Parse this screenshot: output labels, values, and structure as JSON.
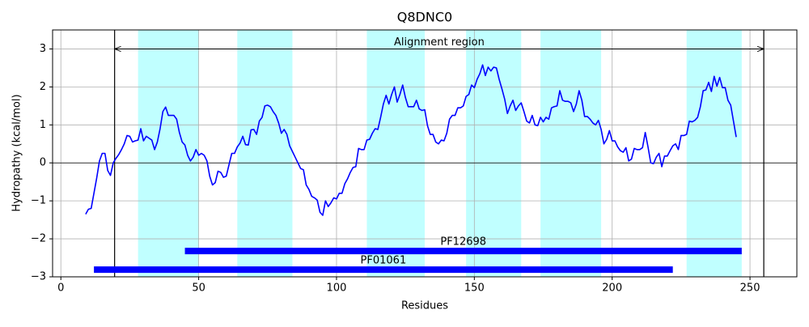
{
  "chart_data": {
    "type": "line",
    "title": "Q8DNC0",
    "x_label": "Residues",
    "y_label": "Hydropathy (kcal/mol)",
    "xlim": [
      -3,
      267
    ],
    "ylim": [
      -3,
      3.5
    ],
    "xticks": [
      0,
      50,
      100,
      150,
      200,
      250
    ],
    "yticks": [
      {
        "value": -3,
        "label": "−3"
      },
      {
        "value": -2,
        "label": "−2"
      },
      {
        "value": -1,
        "label": "−1"
      },
      0,
      1,
      2,
      3
    ],
    "grid": true,
    "hline": 0,
    "color": "#0000ff",
    "regions": [
      {
        "start": 28,
        "end": 50
      },
      {
        "start": 64,
        "end": 84
      },
      {
        "start": 111,
        "end": 132
      },
      {
        "start": 147,
        "end": 167
      },
      {
        "start": 174,
        "end": 196
      },
      {
        "start": 227,
        "end": 247
      }
    ],
    "region_color": "#c0ffff",
    "vlines": [
      19.5,
      255
    ],
    "annotation": {
      "text": "Alignment region",
      "start": 19.5,
      "end": 255,
      "y": 3
    },
    "domains": [
      {
        "name": "PF12698",
        "start": 45,
        "end": 247,
        "y": -2.32
      },
      {
        "name": "PF01061",
        "start": 12,
        "end": 222,
        "y": -2.81
      }
    ],
    "x": [
      9,
      10,
      11,
      12,
      13,
      14,
      15,
      16,
      17,
      18,
      19,
      20,
      21,
      22,
      23,
      24,
      25,
      26,
      27,
      28,
      29,
      30,
      31,
      32,
      33,
      34,
      35,
      36,
      37,
      38,
      39,
      40,
      41,
      42,
      43,
      44,
      45,
      46,
      47,
      48,
      49,
      50,
      51,
      52,
      53,
      54,
      55,
      56,
      57,
      58,
      59,
      60,
      61,
      62,
      63,
      64,
      65,
      66,
      67,
      68,
      69,
      70,
      71,
      72,
      73,
      74,
      75,
      76,
      77,
      78,
      79,
      80,
      81,
      82,
      83,
      84,
      85,
      86,
      87,
      88,
      89,
      90,
      91,
      92,
      93,
      94,
      95,
      96,
      97,
      98,
      99,
      100,
      101,
      102,
      103,
      104,
      105,
      106,
      107,
      108,
      109,
      110,
      111,
      112,
      113,
      114,
      115,
      116,
      117,
      118,
      119,
      120,
      121,
      122,
      123,
      124,
      125,
      126,
      127,
      128,
      129,
      130,
      131,
      132,
      133,
      134,
      135,
      136,
      137,
      138,
      139,
      140,
      141,
      142,
      143,
      144,
      145,
      146,
      147,
      148,
      149,
      150,
      151,
      152,
      153,
      154,
      155,
      156,
      157,
      158,
      159,
      160,
      161,
      162,
      163,
      164,
      165,
      166,
      167,
      168,
      169,
      170,
      171,
      172,
      173,
      174,
      175,
      176,
      177,
      178,
      179,
      180,
      181,
      182,
      183,
      184,
      185,
      186,
      187,
      188,
      189,
      190,
      191,
      192,
      193,
      194,
      195,
      196,
      197,
      198,
      199,
      200,
      201,
      202,
      203,
      204,
      205,
      206,
      207,
      208,
      209,
      210,
      211,
      212,
      213,
      214,
      215,
      216,
      217,
      218,
      219,
      220,
      221,
      222,
      223,
      224,
      225,
      226,
      227,
      228,
      229,
      230,
      231,
      232,
      233,
      234,
      235,
      236,
      237,
      238,
      239,
      240,
      241,
      242,
      243,
      244,
      245
    ],
    "values": [
      -1.35,
      -1.22,
      -1.2,
      -0.8,
      -0.4,
      0.05,
      0.25,
      0.25,
      -0.2,
      -0.33,
      0.0,
      0.12,
      0.22,
      0.35,
      0.5,
      0.72,
      0.7,
      0.55,
      0.58,
      0.6,
      0.9,
      0.58,
      0.7,
      0.65,
      0.6,
      0.35,
      0.55,
      0.9,
      1.35,
      1.47,
      1.25,
      1.25,
      1.25,
      1.15,
      0.8,
      0.55,
      0.47,
      0.2,
      0.05,
      0.15,
      0.35,
      0.2,
      0.25,
      0.2,
      0.05,
      -0.35,
      -0.58,
      -0.52,
      -0.22,
      -0.25,
      -0.38,
      -0.35,
      -0.05,
      0.25,
      0.25,
      0.42,
      0.52,
      0.7,
      0.48,
      0.47,
      0.87,
      0.88,
      0.75,
      1.1,
      1.2,
      1.5,
      1.52,
      1.48,
      1.35,
      1.25,
      1.05,
      0.78,
      0.88,
      0.75,
      0.45,
      0.3,
      0.15,
      0.0,
      -0.15,
      -0.18,
      -0.58,
      -0.7,
      -0.88,
      -0.92,
      -0.98,
      -1.3,
      -1.38,
      -1.0,
      -1.15,
      -1.05,
      -0.92,
      -0.95,
      -0.8,
      -0.8,
      -0.55,
      -0.42,
      -0.25,
      -0.12,
      -0.1,
      0.38,
      0.35,
      0.35,
      0.6,
      0.62,
      0.78,
      0.9,
      0.88,
      1.2,
      1.55,
      1.78,
      1.55,
      1.8,
      2.0,
      1.6,
      1.8,
      2.05,
      1.72,
      1.48,
      1.48,
      1.48,
      1.65,
      1.42,
      1.38,
      1.4,
      0.98,
      0.75,
      0.75,
      0.55,
      0.5,
      0.6,
      0.58,
      0.78,
      1.15,
      1.25,
      1.25,
      1.45,
      1.45,
      1.5,
      1.75,
      1.8,
      2.05,
      1.98,
      2.2,
      2.35,
      2.58,
      2.3,
      2.52,
      2.42,
      2.52,
      2.5,
      2.2,
      1.95,
      1.68,
      1.3,
      1.5,
      1.65,
      1.38,
      1.5,
      1.58,
      1.35,
      1.1,
      1.05,
      1.25,
      1.0,
      0.98,
      1.2,
      1.08,
      1.2,
      1.15,
      1.45,
      1.48,
      1.5,
      1.9,
      1.65,
      1.62,
      1.62,
      1.58,
      1.35,
      1.55,
      1.9,
      1.65,
      1.22,
      1.22,
      1.15,
      1.05,
      1.0,
      1.12,
      0.88,
      0.5,
      0.62,
      0.85,
      0.58,
      0.58,
      0.42,
      0.32,
      0.28,
      0.4,
      0.05,
      0.1,
      0.38,
      0.35,
      0.35,
      0.4,
      0.8,
      0.42,
      0.0,
      -0.02,
      0.15,
      0.25,
      -0.1,
      0.18,
      0.18,
      0.32,
      0.45,
      0.5,
      0.35,
      0.72,
      0.72,
      0.75,
      1.1,
      1.08,
      1.12,
      1.2,
      1.48,
      1.9,
      1.92,
      2.12,
      1.88,
      2.28,
      2.02,
      2.25,
      1.98,
      1.98,
      1.65,
      1.52,
      1.1,
      0.68
    ]
  }
}
